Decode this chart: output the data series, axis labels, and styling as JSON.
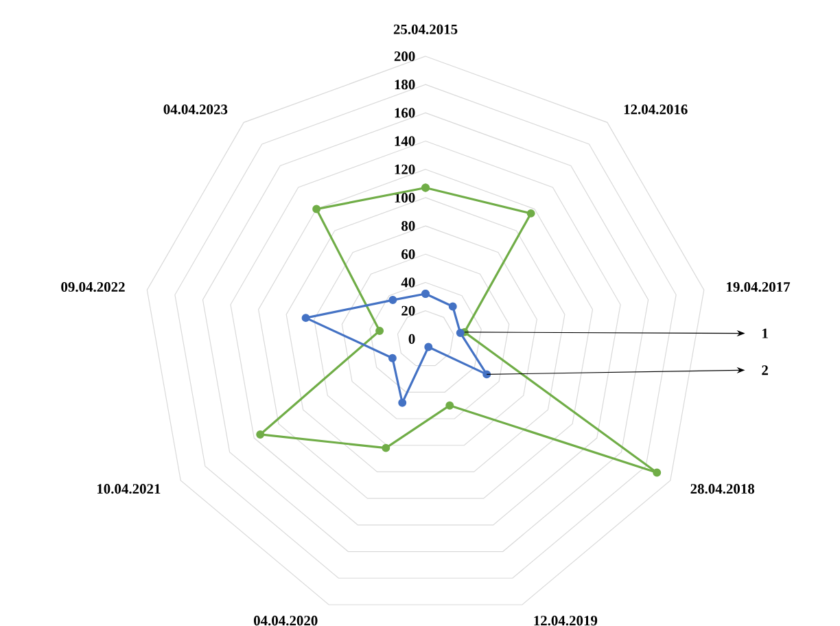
{
  "chart_data": {
    "type": "radar",
    "categories": [
      "25.04.2015",
      "12.04.2016",
      "19.04.2017",
      "28.04.2018",
      "12.04.2019",
      "04.04.2020",
      "10.04.2021",
      "09.04.2022",
      "04.04.2023"
    ],
    "series": [
      {
        "color": "#70ad47",
        "values": [
          107,
          116,
          28,
          189,
          50,
          82,
          135,
          33,
          120
        ]
      },
      {
        "color": "#4472c4",
        "values": [
          32,
          30,
          25,
          50,
          6,
          48,
          27,
          86,
          36
        ]
      }
    ],
    "ylim": [
      0,
      200
    ],
    "yticks": [
      0,
      20,
      40,
      60,
      80,
      100,
      120,
      140,
      160,
      180,
      200
    ],
    "grid": true,
    "marker": "circle",
    "line_style": "solid",
    "annotations": [
      "1",
      "2"
    ]
  }
}
